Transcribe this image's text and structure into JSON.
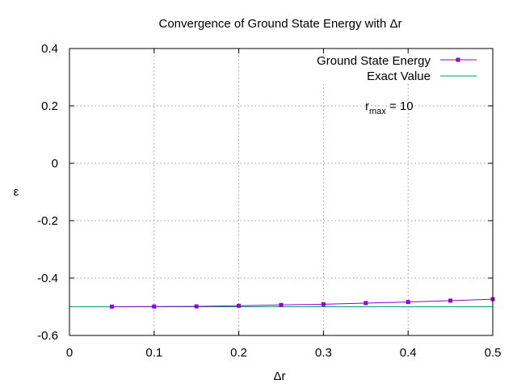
{
  "chart_data": {
    "type": "line",
    "title": "Convergence of Ground State Energy with Δr",
    "xlabel": "Δr",
    "ylabel": "ε",
    "xlim": [
      0,
      0.5
    ],
    "ylim": [
      -0.6,
      0.4
    ],
    "xticks": [
      0,
      0.1,
      0.2,
      0.3,
      0.4,
      0.5
    ],
    "xtick_labels": [
      "0",
      "0.1",
      "0.2",
      "0.3",
      "0.4",
      "0.5"
    ],
    "yticks": [
      -0.6,
      -0.4,
      -0.2,
      0,
      0.2,
      0.4
    ],
    "ytick_labels": [
      "-0.6",
      "-0.4",
      "-0.2",
      "0",
      "0.2",
      "0.4"
    ],
    "grid": true,
    "legend_position": "top-right",
    "series": [
      {
        "name": "Ground State Energy",
        "color": "#9400d3",
        "marker": "square",
        "x": [
          0.05,
          0.1,
          0.15,
          0.2,
          0.25,
          0.3,
          0.35,
          0.4,
          0.45,
          0.5
        ],
        "y": [
          -0.4995,
          -0.4992,
          -0.4987,
          -0.4966,
          -0.4938,
          -0.4911,
          -0.4872,
          -0.4835,
          -0.4787,
          -0.4737
        ]
      },
      {
        "name": "Exact Value",
        "color": "#009e73",
        "marker": "none",
        "x": [
          0,
          0.5
        ],
        "y": [
          -0.5,
          -0.5
        ]
      }
    ],
    "annotation": {
      "base": "r",
      "subscript": "max",
      "text": " = 10"
    }
  }
}
